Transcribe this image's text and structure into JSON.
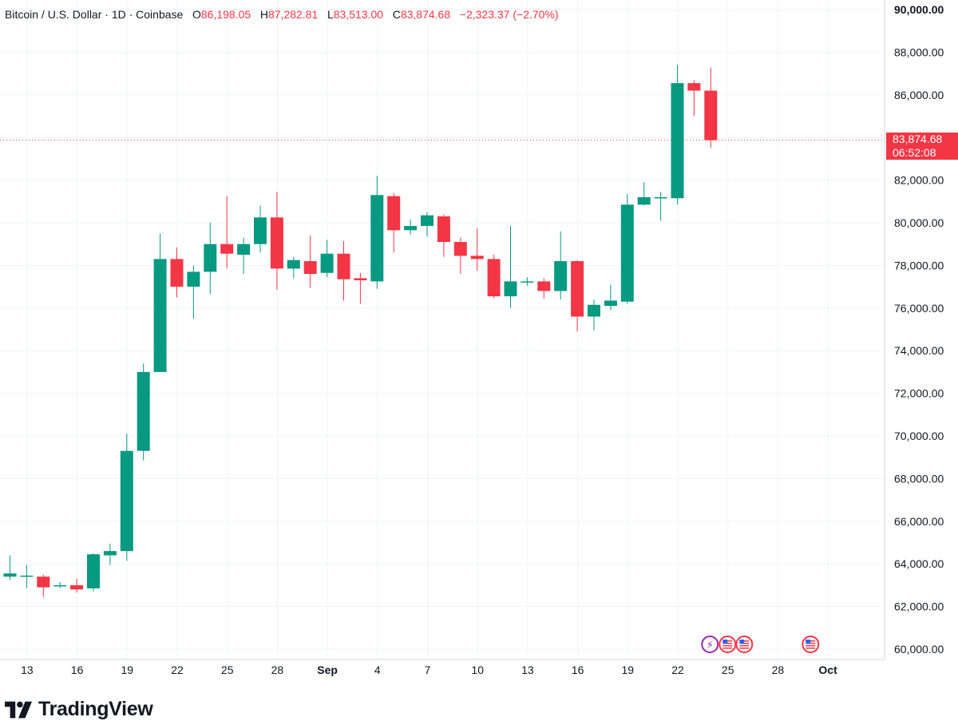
{
  "header": {
    "symbol": "Bitcoin / U.S. Dollar · 1D · Coinbase",
    "open_label": "O",
    "open": "86,198.05",
    "high_label": "H",
    "high": "87,282.81",
    "low_label": "L",
    "low": "83,513.00",
    "close_label": "C",
    "close": "83,874.68",
    "change": "−2,323.37 (−2.70%)"
  },
  "price_tag": {
    "price": "83,874.68",
    "countdown": "06:52:08"
  },
  "brand": {
    "name": "TradingView"
  },
  "colors": {
    "up": "#089981",
    "down": "#f23645",
    "grid": "#f0f3fa",
    "text": "#131722"
  },
  "icons": [
    "lightning-event-icon",
    "us-flag-event-icon"
  ],
  "chart_data": {
    "type": "candlestick",
    "title": "Bitcoin / U.S. Dollar · 1D · Coinbase",
    "ylim": [
      60000,
      90000
    ],
    "y_ticks": [
      "60,000.00",
      "62,000.00",
      "64,000.00",
      "66,000.00",
      "68,000.00",
      "70,000.00",
      "72,000.00",
      "74,000.00",
      "76,000.00",
      "78,000.00",
      "80,000.00",
      "82,000.00",
      "84,000.00",
      "86,000.00",
      "88,000.00",
      "90,000.00"
    ],
    "x_ticks": [
      "13",
      "16",
      "19",
      "22",
      "25",
      "28",
      "Sep",
      "4",
      "7",
      "10",
      "13",
      "16",
      "19",
      "22",
      "25",
      "28",
      "Oct"
    ],
    "last_price": 83874.68,
    "candles": [
      {
        "date": "Aug 12",
        "o": 63400,
        "h": 64400,
        "l": 63250,
        "c": 63550
      },
      {
        "date": "Aug 13",
        "o": 63450,
        "h": 63950,
        "l": 62850,
        "c": 63450
      },
      {
        "date": "Aug 14",
        "o": 63400,
        "h": 63500,
        "l": 62450,
        "c": 62900
      },
      {
        "date": "Aug 15",
        "o": 62950,
        "h": 63150,
        "l": 62850,
        "c": 63000
      },
      {
        "date": "Aug 16",
        "o": 63000,
        "h": 63300,
        "l": 62650,
        "c": 62800
      },
      {
        "date": "Aug 17",
        "o": 62850,
        "h": 64500,
        "l": 62700,
        "c": 64450
      },
      {
        "date": "Aug 18",
        "o": 64400,
        "h": 64950,
        "l": 63950,
        "c": 64600
      },
      {
        "date": "Aug 19",
        "o": 64600,
        "h": 70100,
        "l": 64150,
        "c": 69300
      },
      {
        "date": "Aug 20",
        "o": 69300,
        "h": 73400,
        "l": 68850,
        "c": 73000
      },
      {
        "date": "Aug 21",
        "o": 73000,
        "h": 79500,
        "l": 73000,
        "c": 78300
      },
      {
        "date": "Aug 22",
        "o": 78300,
        "h": 78850,
        "l": 76500,
        "c": 77000
      },
      {
        "date": "Aug 23",
        "o": 77000,
        "h": 78000,
        "l": 75500,
        "c": 77700
      },
      {
        "date": "Aug 24",
        "o": 77700,
        "h": 80000,
        "l": 76650,
        "c": 79000
      },
      {
        "date": "Aug 25",
        "o": 79000,
        "h": 81250,
        "l": 77850,
        "c": 78550
      },
      {
        "date": "Aug 26",
        "o": 78500,
        "h": 79300,
        "l": 77600,
        "c": 79000
      },
      {
        "date": "Aug 27",
        "o": 79000,
        "h": 80800,
        "l": 78600,
        "c": 80250
      },
      {
        "date": "Aug 28",
        "o": 80250,
        "h": 81450,
        "l": 76850,
        "c": 77850
      },
      {
        "date": "Aug 29",
        "o": 77850,
        "h": 78400,
        "l": 77400,
        "c": 78250
      },
      {
        "date": "Aug 30",
        "o": 78200,
        "h": 79400,
        "l": 76950,
        "c": 77600
      },
      {
        "date": "Aug 31",
        "o": 77650,
        "h": 79200,
        "l": 77450,
        "c": 78550
      },
      {
        "date": "Sep 1",
        "o": 78550,
        "h": 79150,
        "l": 76350,
        "c": 77350
      },
      {
        "date": "Sep 2",
        "o": 77400,
        "h": 77650,
        "l": 76200,
        "c": 77300
      },
      {
        "date": "Sep 3",
        "o": 77250,
        "h": 82200,
        "l": 76900,
        "c": 81300
      },
      {
        "date": "Sep 4",
        "o": 81250,
        "h": 81400,
        "l": 78600,
        "c": 79650
      },
      {
        "date": "Sep 5",
        "o": 79650,
        "h": 80150,
        "l": 79450,
        "c": 79850
      },
      {
        "date": "Sep 6",
        "o": 79850,
        "h": 80500,
        "l": 79350,
        "c": 80350
      },
      {
        "date": "Sep 7",
        "o": 80300,
        "h": 80400,
        "l": 78400,
        "c": 79100
      },
      {
        "date": "Sep 8",
        "o": 79100,
        "h": 79300,
        "l": 77600,
        "c": 78450
      },
      {
        "date": "Sep 9",
        "o": 78450,
        "h": 79750,
        "l": 77750,
        "c": 78300
      },
      {
        "date": "Sep 10",
        "o": 78300,
        "h": 78500,
        "l": 76450,
        "c": 76550
      },
      {
        "date": "Sep 11",
        "o": 76550,
        "h": 79850,
        "l": 76000,
        "c": 77250
      },
      {
        "date": "Sep 12",
        "o": 77200,
        "h": 77450,
        "l": 77050,
        "c": 77250
      },
      {
        "date": "Sep 13",
        "o": 77250,
        "h": 77400,
        "l": 76450,
        "c": 76800
      },
      {
        "date": "Sep 14",
        "o": 76800,
        "h": 79600,
        "l": 76400,
        "c": 78200
      },
      {
        "date": "Sep 15",
        "o": 78200,
        "h": 78250,
        "l": 74900,
        "c": 75600
      },
      {
        "date": "Sep 16",
        "o": 75600,
        "h": 76400,
        "l": 74950,
        "c": 76150
      },
      {
        "date": "Sep 17",
        "o": 76100,
        "h": 77100,
        "l": 75900,
        "c": 76350
      },
      {
        "date": "Sep 18",
        "o": 76300,
        "h": 81350,
        "l": 76200,
        "c": 80850
      },
      {
        "date": "Sep 19",
        "o": 80850,
        "h": 81900,
        "l": 80800,
        "c": 81200
      },
      {
        "date": "Sep 20",
        "o": 81150,
        "h": 81450,
        "l": 80100,
        "c": 81200
      },
      {
        "date": "Sep 21",
        "o": 81150,
        "h": 87400,
        "l": 80850,
        "c": 86550
      },
      {
        "date": "Sep 22",
        "o": 86550,
        "h": 86700,
        "l": 85000,
        "c": 86198.05
      },
      {
        "date": "Sep 23",
        "o": 86198.05,
        "h": 87282.81,
        "l": 83513,
        "c": 83874.68
      }
    ]
  }
}
